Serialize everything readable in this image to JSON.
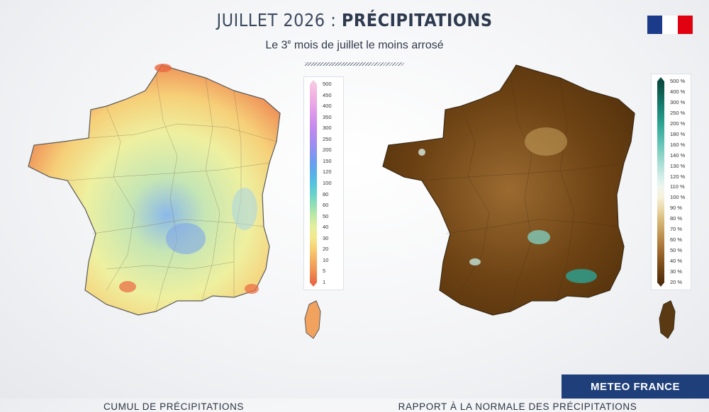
{
  "header": {
    "title_prefix": "JUILLET 2026 : ",
    "title_strong": "PRÉCIPITATIONS",
    "subtitle_before": "Le 3",
    "subtitle_sup": "e",
    "subtitle_after": " mois de juillet le moins arrosé"
  },
  "flag": {
    "colors": [
      "#1b3a8a",
      "#ffffff",
      "#e1000f"
    ]
  },
  "maps": {
    "left": {
      "caption": "CUMUL DE PRÉCIPITATIONS",
      "legend_ticks": [
        "500",
        "450",
        "400",
        "350",
        "300",
        "250",
        "200",
        "150",
        "120",
        "100",
        "80",
        "60",
        "50",
        "40",
        "30",
        "20",
        "10",
        "5",
        "1"
      ],
      "legend_colors": [
        "#f6c7e3",
        "#f0b3e2",
        "#e7a4e6",
        "#d694ea",
        "#c28aee",
        "#a98bf0",
        "#8f91f0",
        "#6d9cf0",
        "#5aaee9",
        "#55c3e0",
        "#69d3c9",
        "#93dfb5",
        "#c1e9a5",
        "#e6ef9c",
        "#f4e78b",
        "#f6ce72",
        "#f3ae5f",
        "#ef8f52",
        "#e96b45"
      ]
    },
    "right": {
      "caption": "RAPPORT À LA NORMALE DES PRÉCIPITATIONS",
      "legend_ticks": [
        "500 %",
        "400 %",
        "300 %",
        "250 %",
        "200 %",
        "180 %",
        "160 %",
        "140 %",
        "130 %",
        "120 %",
        "110 %",
        "100 %",
        "90 %",
        "80 %",
        "70 %",
        "60 %",
        "50 %",
        "40 %",
        "30 %",
        "20 %"
      ],
      "legend_colors": [
        "#0b4a3e",
        "#0e6050",
        "#14786a",
        "#1e8d7e",
        "#2ea392",
        "#49b6a6",
        "#69c6b8",
        "#8dd4c8",
        "#b1e1d8",
        "#d3eee8",
        "#eef6ef",
        "#f7f0d8",
        "#ead9a9",
        "#d9bd7c",
        "#c9a260",
        "#b78647",
        "#a06a30",
        "#86531e",
        "#6a3e12",
        "#4f2d0a"
      ]
    }
  },
  "brand": {
    "label": "METEO FRANCE"
  }
}
